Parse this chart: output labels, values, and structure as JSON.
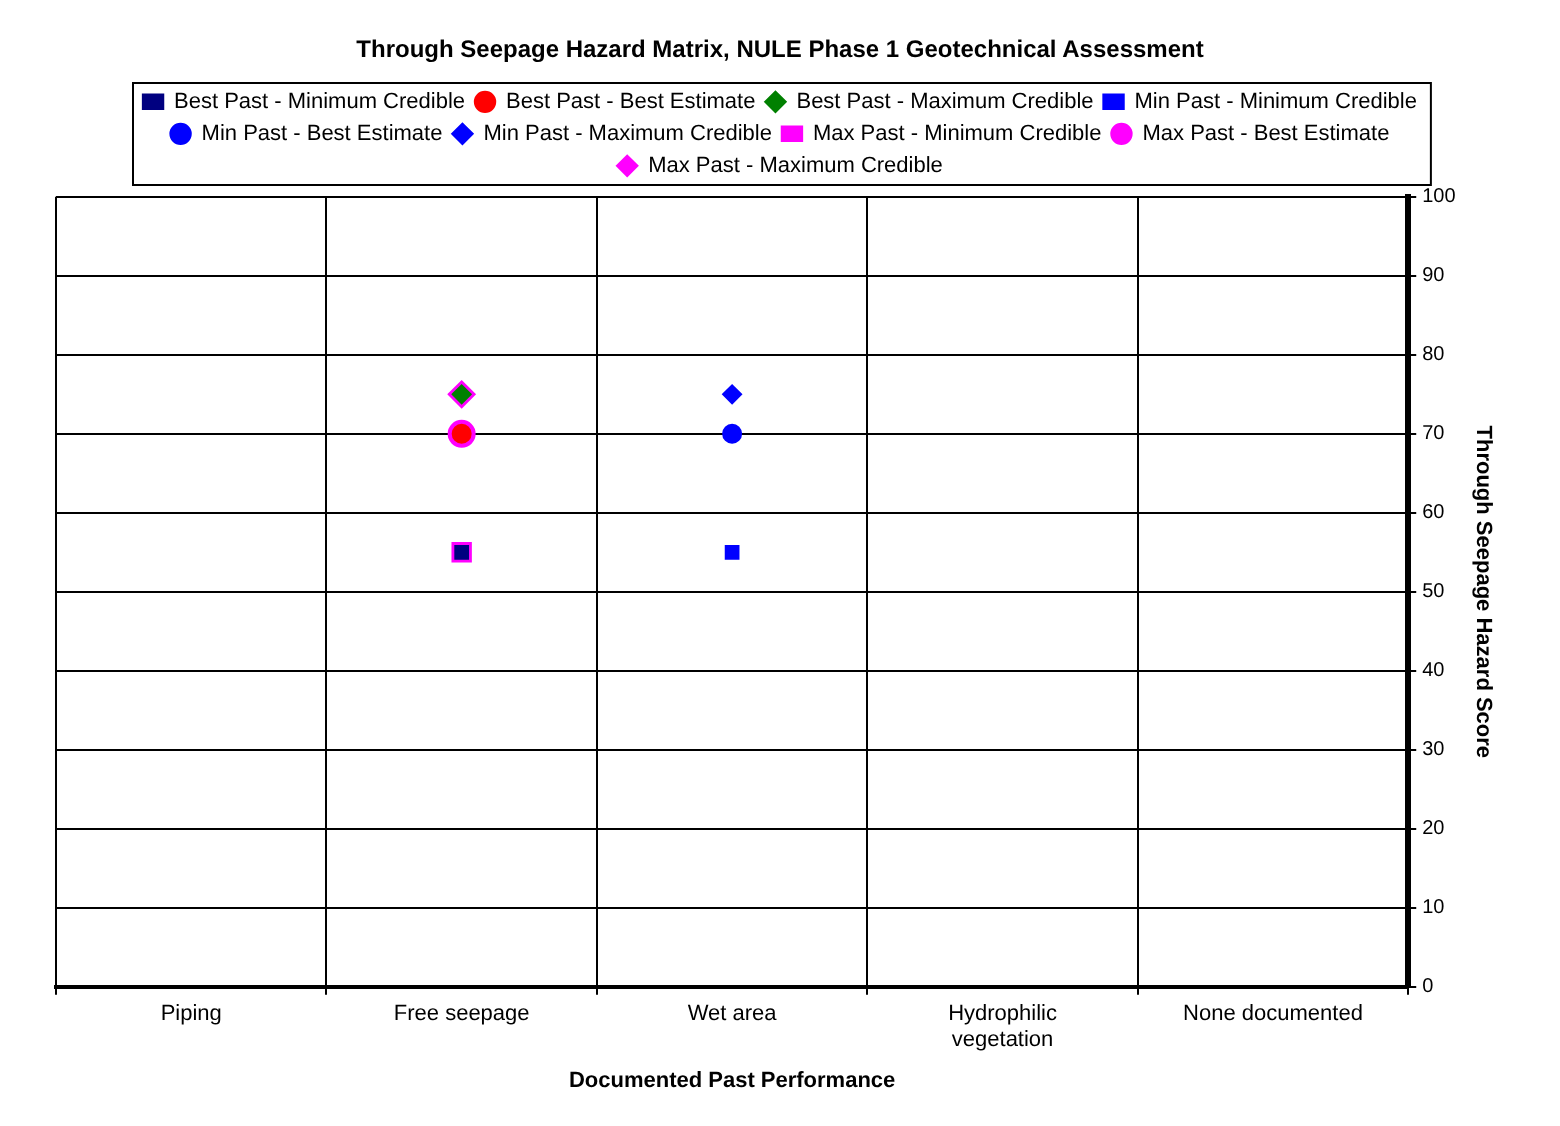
{
  "chart_data": {
    "type": "scatter",
    "title": "Through Seepage Hazard Matrix, NULE Phase 1 Geotechnical Assessment",
    "xlabel": "Documented Past Performance",
    "ylabel": "Through Seepage Hazard Score",
    "categories": [
      "Piping",
      "Free seepage",
      "Wet area",
      "Hydrophilic vegetation",
      "None documented"
    ],
    "ylim": [
      0,
      100
    ],
    "yticks": [
      0,
      10,
      20,
      30,
      40,
      50,
      60,
      70,
      80,
      90,
      100
    ],
    "grid": true,
    "legend": "top",
    "series": [
      {
        "name": "Best Past - Minimum Credible",
        "color": "#000080",
        "marker": "square",
        "x": [
          "Free seepage"
        ],
        "values": [
          55
        ]
      },
      {
        "name": "Best Past - Best Estimate",
        "color": "#ff0000",
        "marker": "circle",
        "x": [
          "Free seepage"
        ],
        "values": [
          70
        ]
      },
      {
        "name": "Best Past - Maximum Credible",
        "color": "#008000",
        "marker": "diamond",
        "x": [
          "Free seepage"
        ],
        "values": [
          75
        ]
      },
      {
        "name": "Min Past - Minimum Credible",
        "color": "#0000ff",
        "marker": "square",
        "x": [
          "Wet area"
        ],
        "values": [
          55
        ]
      },
      {
        "name": "Min Past - Best Estimate",
        "color": "#0000ff",
        "marker": "circle",
        "x": [
          "Wet area"
        ],
        "values": [
          70
        ]
      },
      {
        "name": "Min Past - Maximum Credible",
        "color": "#0000ff",
        "marker": "diamond",
        "x": [
          "Wet area"
        ],
        "values": [
          75
        ]
      },
      {
        "name": "Max Past - Minimum Credible",
        "color": "#ff00ff",
        "marker": "square",
        "x": [
          "Free seepage"
        ],
        "values": [
          55
        ]
      },
      {
        "name": "Max Past - Best Estimate",
        "color": "#ff00ff",
        "marker": "circle",
        "x": [
          "Free seepage"
        ],
        "values": [
          70
        ]
      },
      {
        "name": "Max Past - Maximum Credible",
        "color": "#ff00ff",
        "marker": "diamond",
        "x": [
          "Free seepage"
        ],
        "values": [
          75
        ]
      }
    ]
  }
}
